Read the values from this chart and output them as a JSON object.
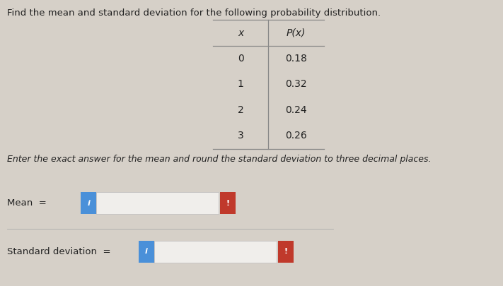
{
  "title": "Find the mean and standard deviation for the following probability distribution.",
  "subtitle": "Enter the exact answer for the mean and round the standard deviation to three decimal places.",
  "table_headers": [
    "x",
    "P(x)"
  ],
  "table_data": [
    [
      0,
      0.18
    ],
    [
      1,
      0.32
    ],
    [
      2,
      0.24
    ],
    [
      3,
      0.26
    ]
  ],
  "mean_label": "Mean  =",
  "std_label": "Standard deviation  =",
  "input_box_color": "#4A90D9",
  "alert_box_color": "#C0392B",
  "bg_color": "#D6D0C8",
  "title_fontsize": 9.5,
  "subtitle_fontsize": 9.0,
  "label_fontsize": 9.5,
  "table_fontsize": 10.0
}
